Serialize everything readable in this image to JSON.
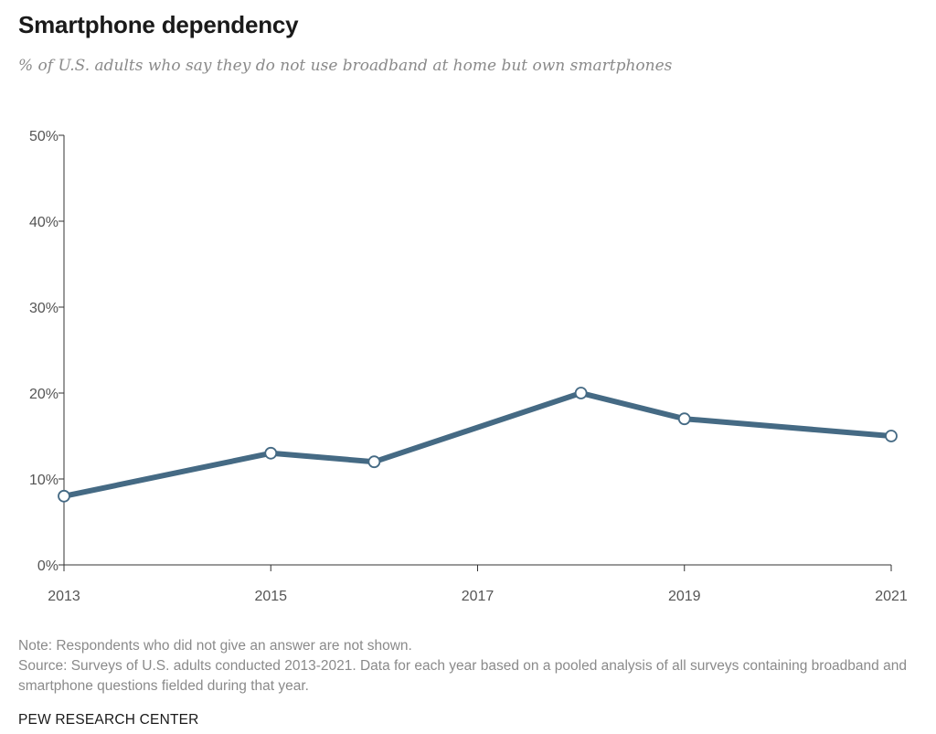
{
  "chart_data": {
    "type": "line",
    "title": "Smartphone dependency",
    "subtitle": "% of U.S. adults who say they do not use broadband at home but own smartphones",
    "xlabel": "",
    "ylabel": "",
    "x_ticks": [
      "2013",
      "2015",
      "2017",
      "2019",
      "2021"
    ],
    "y_ticks": [
      "0%",
      "10%",
      "20%",
      "30%",
      "40%",
      "50%"
    ],
    "xlim": [
      2013,
      2021
    ],
    "ylim": [
      0,
      50
    ],
    "grid": false,
    "legend": "none",
    "series": [
      {
        "color": "#456a84",
        "points": [
          {
            "x": 2013,
            "y": 8
          },
          {
            "x": 2015,
            "y": 13
          },
          {
            "x": 2016,
            "y": 12
          },
          {
            "x": 2018,
            "y": 20
          },
          {
            "x": 2019,
            "y": 17
          },
          {
            "x": 2021,
            "y": 15
          }
        ]
      }
    ]
  },
  "notes": {
    "note": "Note: Respondents who did not give an answer are not shown.",
    "source": "Source: Surveys of U.S. adults conducted 2013-2021. Data for each year based on a pooled analysis of all surveys containing broadband and smartphone questions fielded during that year."
  },
  "credit": "PEW RESEARCH CENTER",
  "colors": {
    "line": "#456a84",
    "axis": "#333333",
    "marker_fill": "#ffffff"
  }
}
